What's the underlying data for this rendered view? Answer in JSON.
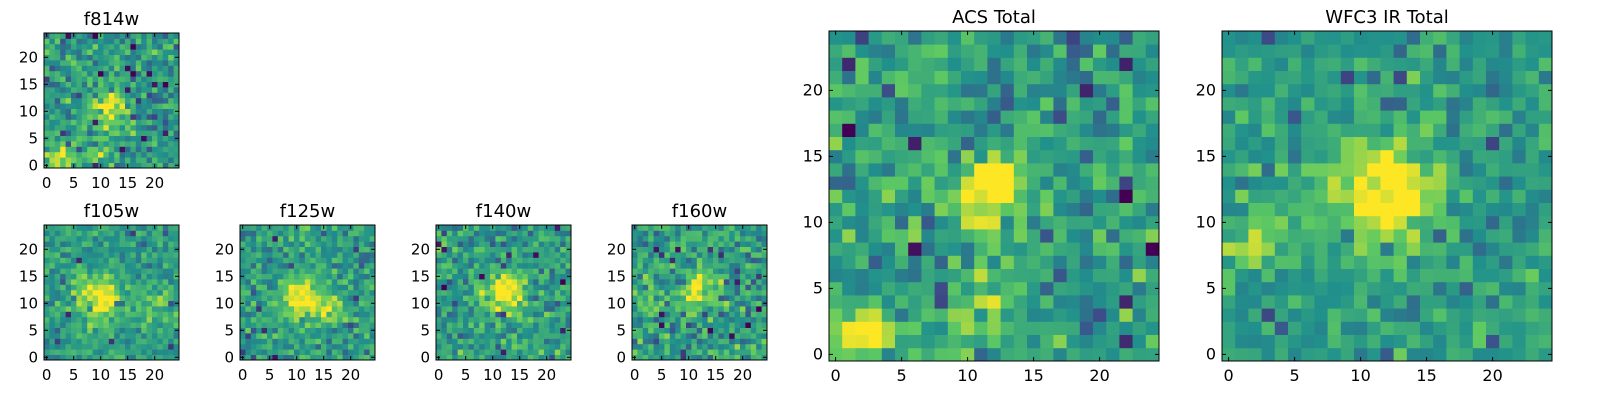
{
  "figure": {
    "colormap": "viridis",
    "colormap_stops": [
      "#440154",
      "#3b528b",
      "#21918c",
      "#5ec962",
      "#fde725"
    ]
  },
  "chart_data": [
    {
      "type": "heatmap",
      "title": "f814w",
      "grid_size": [
        25,
        25
      ],
      "xlim": [
        -0.5,
        24.5
      ],
      "ylim": [
        -0.5,
        24.5
      ],
      "xticks": [
        0,
        5,
        10,
        15,
        20
      ],
      "yticks": [
        0,
        5,
        10,
        15,
        20
      ],
      "origin": "lower",
      "features": {
        "noise": 0.55,
        "blobs": [
          {
            "x": 12,
            "y": 11,
            "sigma": 2.2,
            "amp": 0.5
          },
          {
            "x": 2,
            "y": 1,
            "sigma": 2.0,
            "amp": 0.35
          },
          {
            "x": 9,
            "y": 3,
            "sigma": 1.8,
            "amp": 0.25
          }
        ]
      }
    },
    {
      "type": "heatmap",
      "title": "f105w",
      "grid_size": [
        25,
        25
      ],
      "xlim": [
        -0.5,
        24.5
      ],
      "ylim": [
        -0.5,
        24.5
      ],
      "xticks": [
        0,
        5,
        10,
        15,
        20
      ],
      "yticks": [
        0,
        5,
        10,
        15,
        20
      ],
      "origin": "lower",
      "features": {
        "noise": 0.4,
        "blobs": [
          {
            "x": 10,
            "y": 11,
            "sigma": 2.8,
            "amp": 0.5
          },
          {
            "x": 20,
            "y": 10,
            "sigma": 2.0,
            "amp": 0.25
          }
        ]
      }
    },
    {
      "type": "heatmap",
      "title": "f125w",
      "grid_size": [
        25,
        25
      ],
      "xlim": [
        -0.5,
        24.5
      ],
      "ylim": [
        -0.5,
        24.5
      ],
      "xticks": [
        0,
        5,
        10,
        15,
        20
      ],
      "yticks": [
        0,
        5,
        10,
        15,
        20
      ],
      "origin": "lower",
      "features": {
        "noise": 0.45,
        "blobs": [
          {
            "x": 11,
            "y": 11,
            "sigma": 2.6,
            "amp": 0.5
          },
          {
            "x": 16,
            "y": 9,
            "sigma": 1.8,
            "amp": 0.3
          }
        ]
      }
    },
    {
      "type": "heatmap",
      "title": "f140w",
      "grid_size": [
        25,
        25
      ],
      "xlim": [
        -0.5,
        24.5
      ],
      "ylim": [
        -0.5,
        24.5
      ],
      "xticks": [
        0,
        5,
        10,
        15,
        20
      ],
      "yticks": [
        0,
        5,
        10,
        15,
        20
      ],
      "origin": "lower",
      "features": {
        "noise": 0.5,
        "blobs": [
          {
            "x": 12,
            "y": 12,
            "sigma": 2.4,
            "amp": 0.55
          }
        ]
      }
    },
    {
      "type": "heatmap",
      "title": "f160w",
      "grid_size": [
        25,
        25
      ],
      "xlim": [
        -0.5,
        24.5
      ],
      "ylim": [
        -0.5,
        24.5
      ],
      "xticks": [
        0,
        5,
        10,
        15,
        20
      ],
      "yticks": [
        0,
        5,
        10,
        15,
        20
      ],
      "origin": "lower",
      "features": {
        "noise": 0.55,
        "blobs": [
          {
            "x": 12,
            "y": 12,
            "sigma": 2.4,
            "amp": 0.5
          },
          {
            "x": 2,
            "y": 11,
            "sigma": 1.6,
            "amp": 0.2
          }
        ]
      }
    },
    {
      "type": "heatmap",
      "title": "ACS Total",
      "grid_size": [
        25,
        25
      ],
      "xlim": [
        -0.5,
        24.5
      ],
      "ylim": [
        -0.5,
        24.5
      ],
      "xticks": [
        0,
        5,
        10,
        15,
        20
      ],
      "yticks": [
        0,
        5,
        10,
        15,
        20
      ],
      "origin": "lower",
      "features": {
        "noise": 0.5,
        "blobs": [
          {
            "x": 12,
            "y": 12.5,
            "sigma": 2.0,
            "amp": 0.55
          },
          {
            "x": 2,
            "y": 1,
            "sigma": 2.0,
            "amp": 0.4
          },
          {
            "x": 11,
            "y": 3,
            "sigma": 2.2,
            "amp": 0.3
          }
        ]
      }
    },
    {
      "type": "heatmap",
      "title": "WFC3 IR Total",
      "grid_size": [
        25,
        25
      ],
      "xlim": [
        -0.5,
        24.5
      ],
      "ylim": [
        -0.5,
        24.5
      ],
      "xticks": [
        0,
        5,
        10,
        15,
        20
      ],
      "yticks": [
        0,
        5,
        10,
        15,
        20
      ],
      "origin": "lower",
      "features": {
        "noise": 0.4,
        "blobs": [
          {
            "x": 11.5,
            "y": 12,
            "sigma": 2.8,
            "amp": 0.55
          },
          {
            "x": 2,
            "y": 8,
            "sigma": 1.6,
            "amp": 0.3
          }
        ]
      }
    }
  ]
}
